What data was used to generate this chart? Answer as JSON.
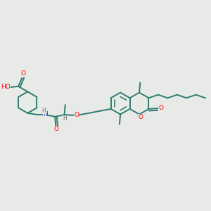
{
  "bg": "#e8eae8",
  "bc": "#2d7d70",
  "oc": "#ff0000",
  "nc": "#3333bb",
  "hc": "#666666",
  "lw": 1.4,
  "lw2": 1.4,
  "fs": 6.5,
  "figsize": [
    3.0,
    3.0
  ],
  "dpi": 100,
  "xlim": [
    0.0,
    1.0
  ],
  "ylim": [
    0.0,
    1.0
  ]
}
